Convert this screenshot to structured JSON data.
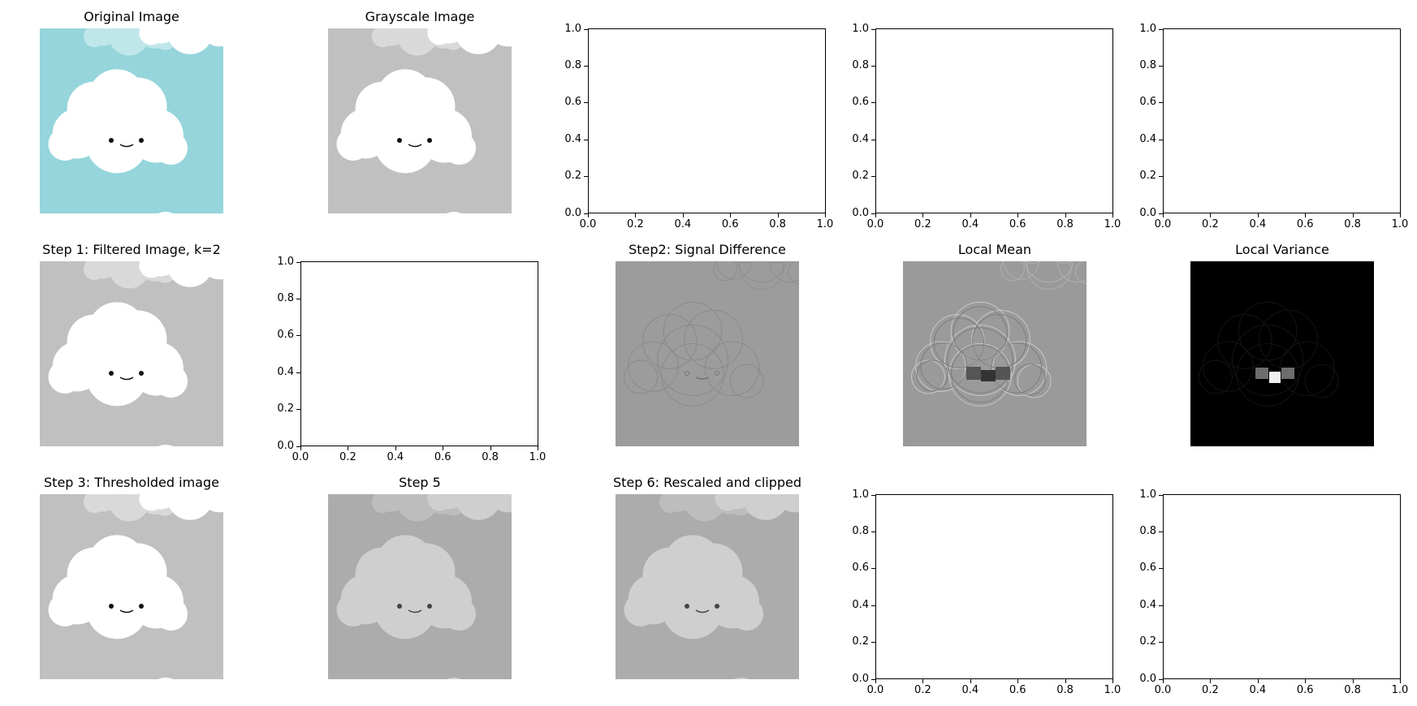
{
  "chart_data": [
    {
      "type": "image",
      "title": "Original Image",
      "colormap": "rgb",
      "bg": "#95d5db",
      "cloud": "#ffffff",
      "cloud_far": "#bfe6e9",
      "eye": "#111111"
    },
    {
      "type": "image",
      "title": "Grayscale Image",
      "colormap": "gray",
      "bg": "#c0c0c0",
      "cloud": "#ffffff",
      "cloud_far": "#d9d9d9",
      "eye": "#111111"
    },
    {
      "type": "empty",
      "xlim": [
        0,
        1
      ],
      "ylim": [
        0,
        1
      ],
      "xticks": [
        "0.0",
        "0.2",
        "0.4",
        "0.6",
        "0.8",
        "1.0"
      ],
      "yticks": [
        "0.0",
        "0.2",
        "0.4",
        "0.6",
        "0.8",
        "1.0"
      ]
    },
    {
      "type": "empty",
      "xlim": [
        0,
        1
      ],
      "ylim": [
        0,
        1
      ],
      "xticks": [
        "0.0",
        "0.2",
        "0.4",
        "0.6",
        "0.8",
        "1.0"
      ],
      "yticks": [
        "0.0",
        "0.2",
        "0.4",
        "0.6",
        "0.8",
        "1.0"
      ]
    },
    {
      "type": "empty",
      "xlim": [
        0,
        1
      ],
      "ylim": [
        0,
        1
      ],
      "xticks": [
        "0.0",
        "0.2",
        "0.4",
        "0.6",
        "0.8",
        "1.0"
      ],
      "yticks": [
        "0.0",
        "0.2",
        "0.4",
        "0.6",
        "0.8",
        "1.0"
      ]
    },
    {
      "type": "image",
      "title": "Step 1: Filtered Image, k=2",
      "colormap": "gray",
      "bg": "#c0c0c0",
      "cloud": "#ffffff",
      "cloud_far": "#d9d9d9",
      "eye": "#111111"
    },
    {
      "type": "empty",
      "xlim": [
        0,
        1
      ],
      "ylim": [
        0,
        1
      ],
      "xticks": [
        "0.0",
        "0.2",
        "0.4",
        "0.6",
        "0.8",
        "1.0"
      ],
      "yticks": [
        "0.0",
        "0.2",
        "0.4",
        "0.6",
        "0.8",
        "1.0"
      ]
    },
    {
      "type": "image",
      "title": "Step2: Signal Difference",
      "colormap": "gray",
      "variant": "edges",
      "bg": "#9c9c9c"
    },
    {
      "type": "image",
      "title": "Local Mean",
      "colormap": "gray",
      "variant": "mean",
      "bg": "#9a9a9a"
    },
    {
      "type": "image",
      "title": "Local Variance",
      "colormap": "gray",
      "variant": "variance",
      "bg": "#000000"
    },
    {
      "type": "image",
      "title": "Step 3: Thresholded image",
      "colormap": "gray",
      "bg": "#c0c0c0",
      "cloud": "#ffffff",
      "cloud_far": "#d9d9d9",
      "eye": "#111111"
    },
    {
      "type": "image",
      "title": "Step 5",
      "colormap": "gray",
      "bg": "#acacac",
      "cloud": "#cfcfcf",
      "cloud_far": "#bdbdbd",
      "eye": "#444444"
    },
    {
      "type": "image",
      "title": "Step 6: Rescaled and clipped",
      "colormap": "gray",
      "bg": "#acacac",
      "cloud": "#cfcfcf",
      "cloud_far": "#bdbdbd",
      "eye": "#444444"
    },
    {
      "type": "empty",
      "xlim": [
        0,
        1
      ],
      "ylim": [
        0,
        1
      ],
      "xticks": [
        "0.0",
        "0.2",
        "0.4",
        "0.6",
        "0.8",
        "1.0"
      ],
      "yticks": [
        "0.0",
        "0.2",
        "0.4",
        "0.6",
        "0.8",
        "1.0"
      ]
    },
    {
      "type": "empty",
      "xlim": [
        0,
        1
      ],
      "ylim": [
        0,
        1
      ],
      "xticks": [
        "0.0",
        "0.2",
        "0.4",
        "0.6",
        "0.8",
        "1.0"
      ],
      "yticks": [
        "0.0",
        "0.2",
        "0.4",
        "0.6",
        "0.8",
        "1.0"
      ]
    }
  ]
}
